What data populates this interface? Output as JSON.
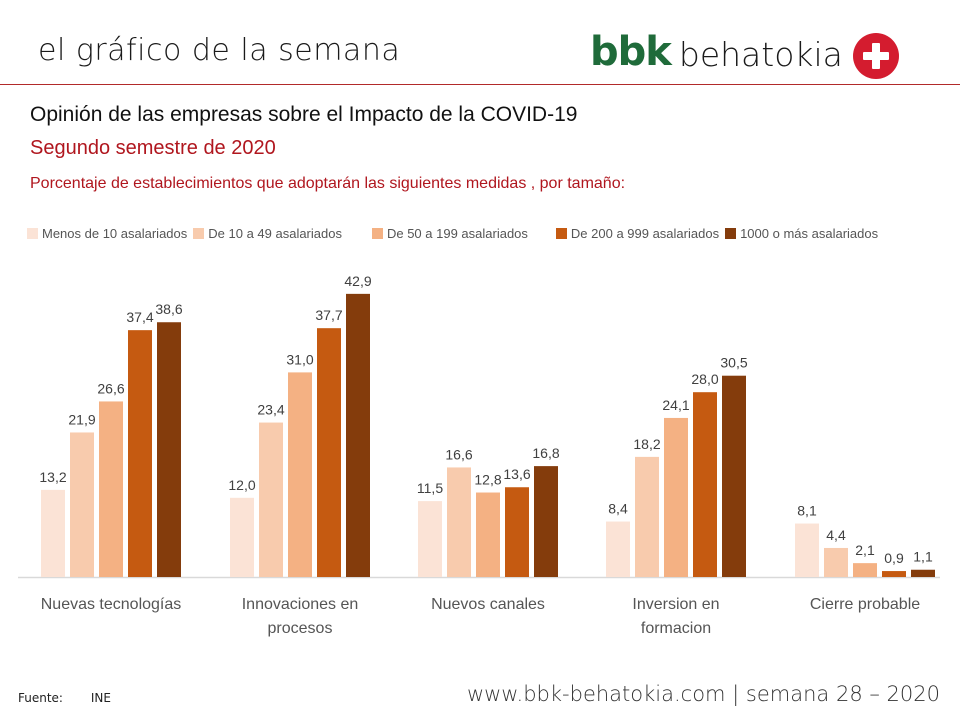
{
  "header": {
    "title": "el gráfico de la semana",
    "logo_bbk": "bbk",
    "logo_word": "behatokia"
  },
  "colors": {
    "accent_red": "#b0161e",
    "logo_green": "#1f6b3a",
    "logo_red": "#d41c2f"
  },
  "chart_data": {
    "type": "bar",
    "title": "Opinión de las empresas sobre el Impacto de la COVID-19",
    "subtitle": "Segundo semestre de 2020",
    "description": "Porcentaje de establecimientos que adoptarán las siguientes medidas , por tamaño:",
    "xlabel": "",
    "ylabel": "",
    "ylim": [
      0,
      45
    ],
    "grid": false,
    "legend_position": "top",
    "categories": [
      [
        "Nuevas tecnologías"
      ],
      [
        "Innovaciones en",
        "procesos"
      ],
      [
        "Nuevos canales"
      ],
      [
        "Inversion en",
        "formacion"
      ],
      [
        "Cierre probable"
      ]
    ],
    "series": [
      {
        "name": "Menos de 10 asalariados",
        "color": "#fbe3d6",
        "values": [
          13.2,
          12.0,
          11.5,
          8.4,
          8.1
        ],
        "labels": [
          "13,2",
          "12,0",
          "11,5",
          "8,4",
          "8,1"
        ]
      },
      {
        "name": "De 10 a 49 asalariados",
        "color": "#f8cbad",
        "values": [
          21.9,
          23.4,
          16.6,
          18.2,
          4.4
        ],
        "labels": [
          "21,9",
          "23,4",
          "16,6",
          "18,2",
          "4,4"
        ]
      },
      {
        "name": "De 50 a 199 asalariados",
        "color": "#f4b183",
        "values": [
          26.6,
          31.0,
          12.8,
          24.1,
          2.1
        ],
        "labels": [
          "26,6",
          "31,0",
          "12,8",
          "24,1",
          "2,1"
        ]
      },
      {
        "name": "De 200 a 999 asalariados",
        "color": "#c55a11",
        "values": [
          37.4,
          37.7,
          13.6,
          28.0,
          0.9
        ],
        "labels": [
          "37,4",
          "37,7",
          "13,6",
          "28,0",
          "0,9"
        ]
      },
      {
        "name": "1000 o más asalariados",
        "color": "#843c0c",
        "values": [
          38.6,
          42.9,
          16.8,
          30.5,
          1.1
        ],
        "labels": [
          "38,6",
          "42,9",
          "16,8",
          "30,5",
          "1,1"
        ]
      }
    ]
  },
  "footer": {
    "source_label": "Fuente:",
    "source_value": "INE",
    "site_info": "www.bbk-behatokia.com | semana 28 – 2020"
  }
}
